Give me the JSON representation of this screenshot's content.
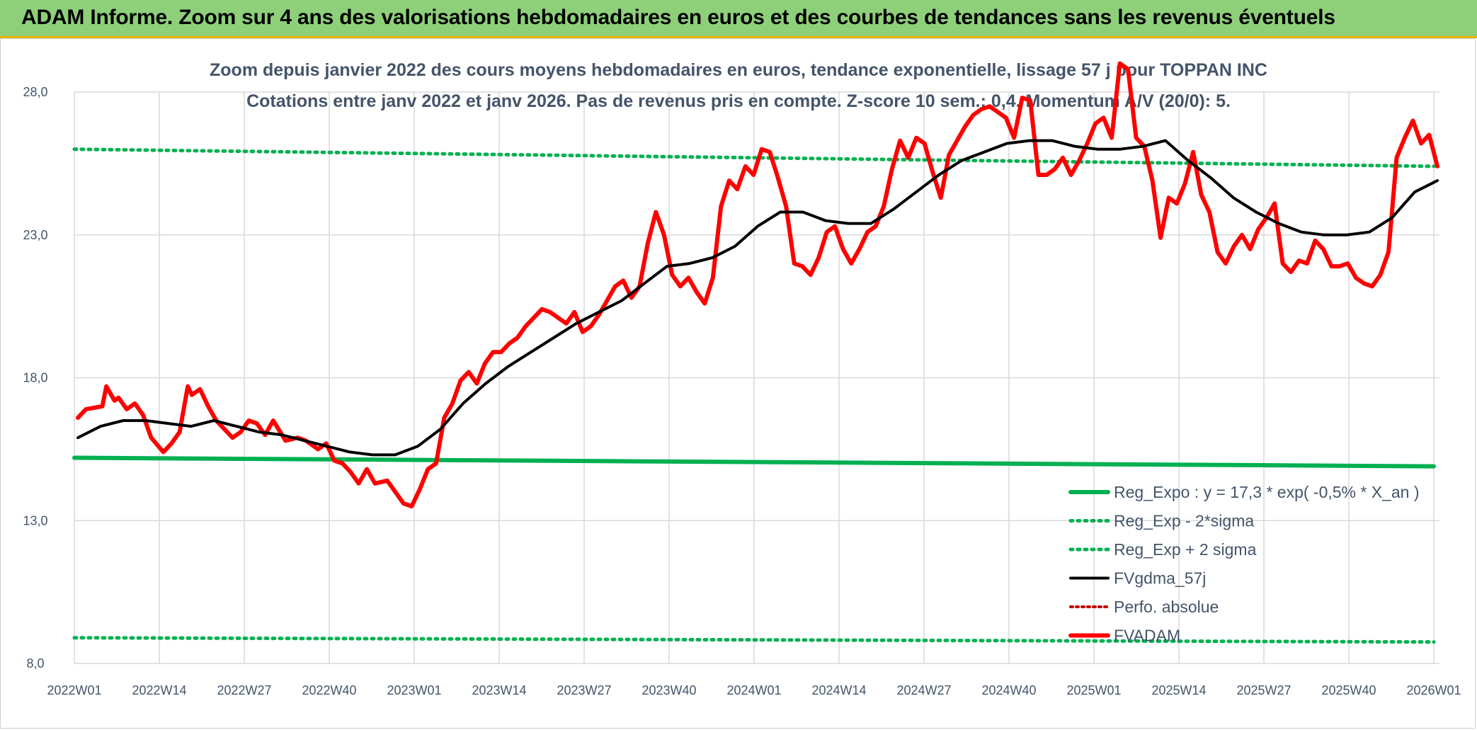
{
  "banner": {
    "title": "ADAM Informe. Zoom sur 4 ans des valorisations hebdomadaires en euros et des courbes de tendances sans les revenus éventuels"
  },
  "colors": {
    "banner_bg": "#8ed07a",
    "banner_border": "#e8b400",
    "fvadam": "#ff0000",
    "fvgdma": "#000000",
    "reg_expo": "#00b050",
    "band": "#00b050",
    "perfo": "#c00000",
    "grid": "#d9d9d9",
    "text": "#44546a"
  },
  "chart_data": {
    "type": "line",
    "title": "Zoom depuis janvier 2022 des cours moyens hebdomadaires en euros, tendance exponentielle, lissage 57 j pour TOPPAN INC",
    "subtitle": "Cotations entre janv 2022 et janv 2026. Pas de revenus pris en compte. Z-score 10 sem.: 0,4. Momentum A/V (20/0): 5.",
    "x_tick_labels": [
      "2022W01",
      "2022W14",
      "2022W27",
      "2022W40",
      "2023W01",
      "2023W14",
      "2023W27",
      "2023W40",
      "2024W01",
      "2024W14",
      "2024W27",
      "2024W40",
      "2025W01",
      "2025W14",
      "2025W27",
      "2025W40",
      "2026W01"
    ],
    "y_tick_labels": [
      "8,0",
      "13,0",
      "18,0",
      "23,0",
      "28,0"
    ],
    "ylim": [
      8,
      28
    ],
    "legend_position": "bottom-right",
    "grid": true,
    "series": [
      {
        "name": "Reg_Expo : y = 17,3 * exp( -0,5% * X_an )",
        "style": "solid-thick",
        "points": [
          [
            0,
            15.2
          ],
          [
            208,
            14.9
          ]
        ]
      },
      {
        "name": "Reg_Exp - 2*sigma",
        "style": "dotted",
        "points": [
          [
            0,
            8.9
          ],
          [
            208,
            8.75
          ]
        ]
      },
      {
        "name": "Reg_Exp + 2 sigma",
        "style": "dotted",
        "points": [
          [
            0,
            26.0
          ],
          [
            208,
            25.4
          ]
        ]
      },
      {
        "name": "FVgdma_57j",
        "style": "solid",
        "points": [
          [
            0,
            15.9
          ],
          [
            4,
            16.3
          ],
          [
            8,
            16.5
          ],
          [
            12,
            16.5
          ],
          [
            16,
            16.4
          ],
          [
            20,
            16.3
          ],
          [
            24,
            16.5
          ],
          [
            28,
            16.3
          ],
          [
            32,
            16.1
          ],
          [
            36,
            16.0
          ],
          [
            40,
            15.8
          ],
          [
            44,
            15.6
          ],
          [
            48,
            15.4
          ],
          [
            52,
            15.3
          ],
          [
            56,
            15.3
          ],
          [
            60,
            15.6
          ],
          [
            64,
            16.2
          ],
          [
            68,
            17.1
          ],
          [
            72,
            17.8
          ],
          [
            76,
            18.4
          ],
          [
            80,
            18.9
          ],
          [
            84,
            19.4
          ],
          [
            88,
            19.9
          ],
          [
            92,
            20.3
          ],
          [
            96,
            20.7
          ],
          [
            100,
            21.3
          ],
          [
            104,
            21.9
          ],
          [
            108,
            22.0
          ],
          [
            112,
            22.2
          ],
          [
            116,
            22.6
          ],
          [
            120,
            23.3
          ],
          [
            124,
            23.8
          ],
          [
            128,
            23.8
          ],
          [
            132,
            23.5
          ],
          [
            136,
            23.4
          ],
          [
            140,
            23.4
          ],
          [
            144,
            23.9
          ],
          [
            148,
            24.5
          ],
          [
            152,
            25.1
          ],
          [
            156,
            25.6
          ],
          [
            160,
            25.9
          ],
          [
            164,
            26.2
          ],
          [
            168,
            26.3
          ],
          [
            172,
            26.3
          ],
          [
            176,
            26.1
          ],
          [
            180,
            26.0
          ],
          [
            184,
            26.0
          ],
          [
            188,
            26.1
          ],
          [
            192,
            26.3
          ],
          [
            196,
            25.6
          ],
          [
            200,
            25.0
          ],
          [
            204,
            24.3
          ],
          [
            208,
            23.8
          ],
          [
            212,
            23.4
          ],
          [
            216,
            23.1
          ],
          [
            220,
            23.0
          ],
          [
            224,
            23.0
          ],
          [
            228,
            23.1
          ],
          [
            232,
            23.6
          ],
          [
            236,
            24.5
          ],
          [
            240,
            24.9
          ]
        ]
      },
      {
        "name": "Perfo. absolue",
        "style": "dotted",
        "points": []
      },
      {
        "name": "FVADAM",
        "style": "solid-thick",
        "points": [
          [
            0,
            16.6
          ],
          [
            2,
            16.9
          ],
          [
            6,
            17.0
          ],
          [
            7,
            17.7
          ],
          [
            9,
            17.2
          ],
          [
            10,
            17.3
          ],
          [
            12,
            16.9
          ],
          [
            14,
            17.1
          ],
          [
            16,
            16.7
          ],
          [
            18,
            15.9
          ],
          [
            21,
            15.4
          ],
          [
            23,
            15.7
          ],
          [
            25,
            16.1
          ],
          [
            27,
            17.7
          ],
          [
            28,
            17.4
          ],
          [
            30,
            17.6
          ],
          [
            32,
            17.0
          ],
          [
            34,
            16.5
          ],
          [
            36,
            16.2
          ],
          [
            38,
            15.9
          ],
          [
            40,
            16.1
          ],
          [
            42,
            16.5
          ],
          [
            44,
            16.4
          ],
          [
            46,
            16.0
          ],
          [
            48,
            16.5
          ],
          [
            51,
            15.8
          ],
          [
            54,
            15.9
          ],
          [
            56,
            15.8
          ],
          [
            58,
            15.6
          ],
          [
            59,
            15.5
          ],
          [
            61,
            15.7
          ],
          [
            63,
            15.1
          ],
          [
            65,
            15.0
          ],
          [
            67,
            14.7
          ],
          [
            69,
            14.3
          ],
          [
            71,
            14.8
          ],
          [
            73,
            14.3
          ],
          [
            76,
            14.4
          ],
          [
            78,
            14.0
          ],
          [
            80,
            13.6
          ],
          [
            82,
            13.5
          ],
          [
            84,
            14.1
          ],
          [
            86,
            14.8
          ],
          [
            88,
            15.0
          ],
          [
            90,
            16.6
          ],
          [
            92,
            17.1
          ],
          [
            94,
            17.9
          ],
          [
            96,
            18.2
          ],
          [
            98,
            17.8
          ],
          [
            100,
            18.5
          ],
          [
            102,
            18.9
          ],
          [
            104,
            18.9
          ],
          [
            106,
            19.2
          ],
          [
            108,
            19.4
          ],
          [
            110,
            19.8
          ],
          [
            112,
            20.1
          ],
          [
            114,
            20.4
          ],
          [
            116,
            20.3
          ],
          [
            118,
            20.1
          ],
          [
            120,
            19.9
          ],
          [
            122,
            20.3
          ],
          [
            124,
            19.6
          ],
          [
            126,
            19.8
          ],
          [
            128,
            20.2
          ],
          [
            130,
            20.7
          ],
          [
            132,
            21.2
          ],
          [
            134,
            21.4
          ],
          [
            136,
            20.8
          ],
          [
            138,
            21.2
          ],
          [
            140,
            22.7
          ],
          [
            142,
            23.8
          ],
          [
            144,
            23.0
          ],
          [
            146,
            21.6
          ],
          [
            148,
            21.2
          ],
          [
            150,
            21.5
          ],
          [
            152,
            21.0
          ],
          [
            154,
            20.6
          ],
          [
            156,
            21.5
          ],
          [
            158,
            24.0
          ],
          [
            160,
            24.9
          ],
          [
            162,
            24.6
          ],
          [
            164,
            25.4
          ],
          [
            166,
            25.1
          ],
          [
            168,
            26.0
          ],
          [
            170,
            25.9
          ],
          [
            172,
            25.0
          ],
          [
            174,
            24.0
          ],
          [
            176,
            22.0
          ],
          [
            178,
            21.9
          ],
          [
            180,
            21.6
          ],
          [
            182,
            22.2
          ],
          [
            184,
            23.1
          ],
          [
            186,
            23.3
          ],
          [
            188,
            22.5
          ],
          [
            190,
            22.0
          ],
          [
            192,
            22.5
          ],
          [
            194,
            23.1
          ],
          [
            196,
            23.3
          ],
          [
            198,
            24.0
          ],
          [
            200,
            25.3
          ],
          [
            202,
            26.3
          ],
          [
            204,
            25.7
          ],
          [
            206,
            26.4
          ],
          [
            208,
            26.2
          ],
          [
            210,
            25.2
          ],
          [
            212,
            24.3
          ],
          [
            214,
            25.8
          ],
          [
            216,
            26.3
          ],
          [
            218,
            26.8
          ],
          [
            220,
            27.2
          ],
          [
            222,
            27.4
          ],
          [
            224,
            27.5
          ],
          [
            226,
            27.3
          ],
          [
            228,
            27.1
          ],
          [
            230,
            26.4
          ],
          [
            232,
            27.8
          ],
          [
            234,
            27.7
          ],
          [
            236,
            25.1
          ],
          [
            238,
            25.1
          ],
          [
            240,
            25.3
          ],
          [
            242,
            25.7
          ],
          [
            244,
            25.1
          ],
          [
            246,
            25.6
          ],
          [
            248,
            26.2
          ],
          [
            250,
            26.9
          ],
          [
            252,
            27.1
          ],
          [
            254,
            26.4
          ],
          [
            256,
            29.0
          ],
          [
            258,
            28.8
          ],
          [
            260,
            26.4
          ],
          [
            262,
            26.1
          ],
          [
            264,
            24.9
          ],
          [
            266,
            22.9
          ],
          [
            268,
            24.3
          ],
          [
            270,
            24.1
          ],
          [
            272,
            24.8
          ],
          [
            274,
            25.9
          ],
          [
            276,
            24.4
          ],
          [
            278,
            23.8
          ],
          [
            280,
            22.4
          ],
          [
            282,
            22.0
          ],
          [
            284,
            22.6
          ],
          [
            286,
            23.0
          ],
          [
            288,
            22.5
          ],
          [
            290,
            23.2
          ],
          [
            292,
            23.6
          ],
          [
            294,
            24.1
          ],
          [
            296,
            22.0
          ],
          [
            298,
            21.7
          ],
          [
            300,
            22.1
          ],
          [
            302,
            22.0
          ],
          [
            304,
            22.8
          ],
          [
            306,
            22.5
          ],
          [
            308,
            21.9
          ],
          [
            310,
            21.9
          ],
          [
            312,
            22.0
          ],
          [
            314,
            21.5
          ],
          [
            316,
            21.3
          ],
          [
            318,
            21.2
          ],
          [
            320,
            21.6
          ],
          [
            322,
            22.4
          ],
          [
            324,
            25.7
          ],
          [
            326,
            26.4
          ],
          [
            328,
            27.0
          ],
          [
            330,
            26.2
          ],
          [
            332,
            26.5
          ],
          [
            334,
            25.4
          ]
        ]
      }
    ]
  }
}
